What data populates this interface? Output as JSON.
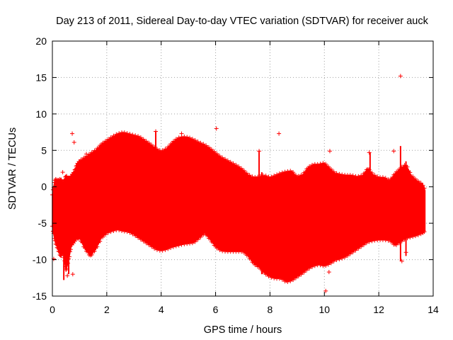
{
  "chart_data": {
    "type": "scatter",
    "title": "Day 213 of 2011, Sidereal Day-to-day VTEC variation (SDTVAR) for receiver auck",
    "xlabel": "GPS time / hours",
    "ylabel": "SDTVAR / TECUs",
    "xlim": [
      0,
      14
    ],
    "ylim": [
      -15,
      20
    ],
    "xticks": [
      0,
      2,
      4,
      6,
      8,
      10,
      12,
      14
    ],
    "yticks": [
      -15,
      -10,
      -5,
      0,
      5,
      10,
      15,
      20
    ],
    "xtick_labels": [
      "0",
      "2",
      "4",
      "6",
      "8",
      10,
      "12",
      "14"
    ],
    "ytick_labels": [
      "-15",
      "-10",
      "-5",
      "0",
      "5",
      "10",
      "15",
      "20"
    ],
    "grid": true,
    "marker": "+",
    "color": "#ff0000",
    "series": [
      {
        "name": "SDTVAR",
        "envelope": {
          "x": [
            0.0,
            0.1,
            0.2,
            0.3,
            0.4,
            0.5,
            0.6,
            0.7,
            0.8,
            0.9,
            1.0,
            1.2,
            1.4,
            1.6,
            1.8,
            2.0,
            2.2,
            2.4,
            2.6,
            2.8,
            3.0,
            3.2,
            3.4,
            3.6,
            3.8,
            4.0,
            4.2,
            4.4,
            4.6,
            4.8,
            5.0,
            5.2,
            5.4,
            5.6,
            5.8,
            6.0,
            6.2,
            6.4,
            6.6,
            6.8,
            7.0,
            7.2,
            7.4,
            7.6,
            7.8,
            8.0,
            8.2,
            8.4,
            8.6,
            8.8,
            9.0,
            9.2,
            9.4,
            9.6,
            9.8,
            10.0,
            10.2,
            10.4,
            10.6,
            10.8,
            11.0,
            11.2,
            11.4,
            11.6,
            11.8,
            12.0,
            12.2,
            12.4,
            12.6,
            12.8,
            13.0,
            13.2,
            13.4,
            13.6,
            13.7
          ],
          "upper": [
            -1.0,
            1.0,
            0.8,
            1.0,
            0.5,
            1.5,
            1.0,
            1.5,
            2.0,
            3.0,
            3.5,
            4.0,
            4.5,
            5.0,
            5.8,
            6.3,
            6.8,
            7.2,
            7.4,
            7.2,
            7.0,
            6.8,
            6.3,
            5.8,
            5.2,
            4.8,
            5.2,
            6.0,
            6.6,
            6.8,
            6.7,
            6.4,
            6.0,
            5.7,
            5.2,
            4.6,
            4.0,
            3.6,
            3.2,
            2.8,
            2.3,
            1.6,
            1.2,
            1.3,
            1.5,
            1.2,
            1.5,
            1.8,
            2.0,
            2.1,
            1.3,
            1.6,
            2.6,
            3.0,
            3.0,
            3.2,
            2.5,
            1.8,
            1.6,
            1.5,
            1.5,
            1.3,
            1.5,
            2.5,
            1.6,
            1.2,
            1.2,
            0.8,
            1.8,
            2.5,
            3.0,
            1.5,
            0.8,
            0.3,
            -0.5
          ],
          "lower": [
            -5.5,
            -7.5,
            -8.5,
            -9.5,
            -9.0,
            -11.5,
            -10.0,
            -8.0,
            -7.5,
            -7.0,
            -7.0,
            -8.5,
            -9.5,
            -8.5,
            -7.0,
            -6.3,
            -6.0,
            -5.8,
            -6.0,
            -6.1,
            -6.5,
            -7.0,
            -7.5,
            -8.0,
            -8.5,
            -8.7,
            -8.5,
            -8.2,
            -8.0,
            -7.8,
            -7.7,
            -7.6,
            -7.0,
            -6.3,
            -7.2,
            -8.2,
            -8.7,
            -8.8,
            -8.8,
            -8.8,
            -8.8,
            -9.5,
            -10.5,
            -11.0,
            -11.8,
            -12.3,
            -12.5,
            -12.5,
            -13.0,
            -12.8,
            -12.3,
            -11.8,
            -11.2,
            -10.8,
            -10.6,
            -10.8,
            -10.5,
            -10.0,
            -9.8,
            -9.5,
            -9.0,
            -8.5,
            -8.0,
            -7.5,
            -7.3,
            -7.2,
            -7.2,
            -7.3,
            -8.0,
            -7.5,
            -7.0,
            -6.8,
            -6.6,
            -6.3,
            -6.0
          ]
        },
        "outliers": [
          {
            "x": 0.05,
            "y": -9.9
          },
          {
            "x": 0.38,
            "y": 2.0
          },
          {
            "x": 0.55,
            "y": -12.2
          },
          {
            "x": 0.73,
            "y": 7.3
          },
          {
            "x": 0.8,
            "y": 6.1
          },
          {
            "x": 0.75,
            "y": -12.0
          },
          {
            "x": 1.25,
            "y": 4.5
          },
          {
            "x": 3.8,
            "y": 7.6
          },
          {
            "x": 4.75,
            "y": 7.3
          },
          {
            "x": 6.03,
            "y": 8.0
          },
          {
            "x": 7.6,
            "y": 4.9
          },
          {
            "x": 8.33,
            "y": 7.3
          },
          {
            "x": 10.05,
            "y": -14.3
          },
          {
            "x": 10.17,
            "y": -11.7
          },
          {
            "x": 10.2,
            "y": 4.9
          },
          {
            "x": 11.65,
            "y": 4.7
          },
          {
            "x": 12.55,
            "y": 4.9
          },
          {
            "x": 12.8,
            "y": 15.2
          },
          {
            "x": 12.85,
            "y": -10.2
          },
          {
            "x": 13.0,
            "y": -9.0
          }
        ],
        "spikes": [
          {
            "x": 0.42,
            "ymin": -12.8,
            "ymax": 1.0
          },
          {
            "x": 0.6,
            "ymin": -12.0,
            "ymax": 1.5
          },
          {
            "x": 3.8,
            "ymin": 4.0,
            "ymax": 7.6
          },
          {
            "x": 7.6,
            "ymin": 1.5,
            "ymax": 4.9
          },
          {
            "x": 7.7,
            "ymin": -12.0,
            "ymax": 2.0
          },
          {
            "x": 11.68,
            "ymin": 1.5,
            "ymax": 4.7
          },
          {
            "x": 12.8,
            "ymin": -10.2,
            "ymax": 5.6
          },
          {
            "x": 13.0,
            "ymin": -9.5,
            "ymax": 3.5
          }
        ]
      }
    ]
  }
}
